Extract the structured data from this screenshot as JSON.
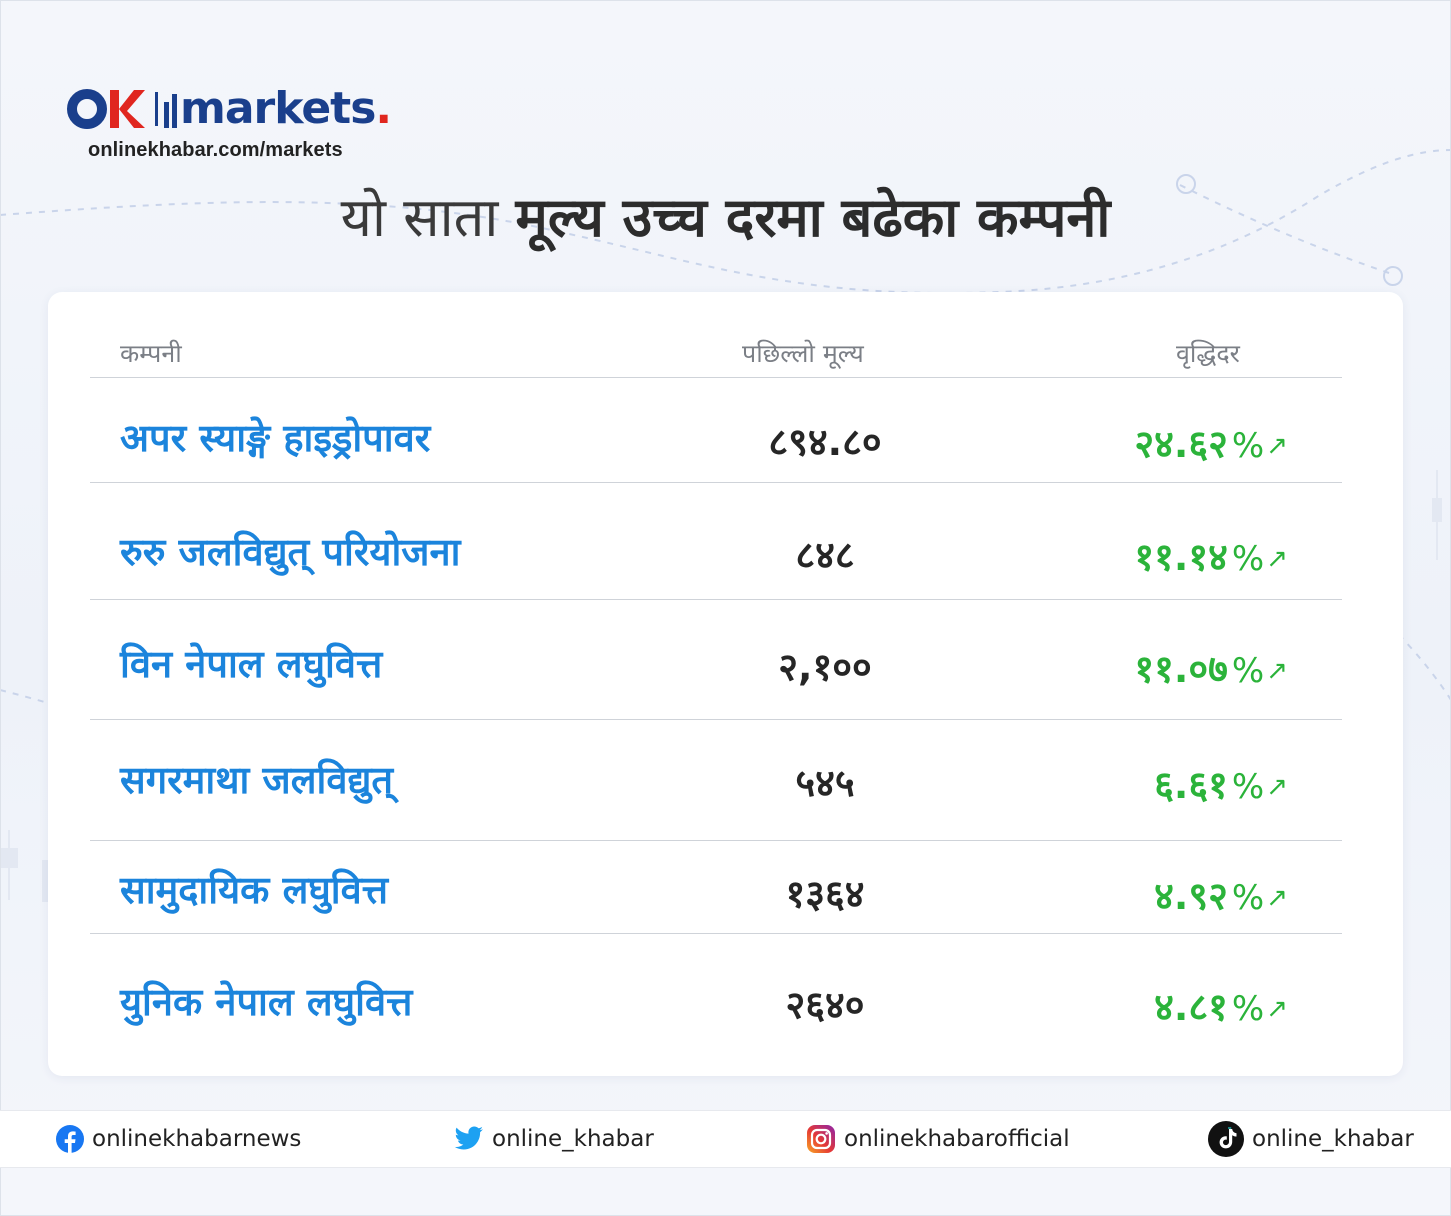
{
  "brand": {
    "wordmark": "markets",
    "wordmark_dot": ".",
    "url": "onlinekhabar.com/markets",
    "colors": {
      "navy": "#1a3f8c",
      "red": "#e0261f"
    }
  },
  "headline": {
    "light": "यो साता ",
    "bold": "मूल्य उच्च दरमा बढेका कम्पनी"
  },
  "table": {
    "headers": {
      "company": "कम्पनी",
      "price": "पछिल्लो मूल्य",
      "change": "वृद्धिदर"
    },
    "rows": [
      {
        "company": "अपर स्याङ्गे हाइड्रोपावर",
        "price": "८९४.८०",
        "change": "२४.६२",
        "unit": "%",
        "trend": "↗"
      },
      {
        "company": "रुरु जलविद्युत् परियोजना",
        "price": "८४८",
        "change": "११.१४",
        "unit": "%",
        "trend": "↗"
      },
      {
        "company": "विन नेपाल लघुवित्त",
        "price": "२,१००",
        "change": "११.०७",
        "unit": "%",
        "trend": "↗"
      },
      {
        "company": "सगरमाथा जलविद्युत्",
        "price": "५४५",
        "change": "६.६१",
        "unit": "%",
        "trend": "↗"
      },
      {
        "company": "सामुदायिक लघुवित्त",
        "price": "१३६४",
        "change": "४.९२",
        "unit": "%",
        "trend": "↗"
      },
      {
        "company": "युनिक नेपाल लघुवित्त",
        "price": "२६४०",
        "change": "४.८१",
        "unit": "%",
        "trend": "↗"
      }
    ],
    "colors": {
      "company": "#1b84dc",
      "change": "#2bb33a",
      "price": "#262626"
    }
  },
  "social": [
    {
      "icon": "facebook-icon",
      "handle": "onlinekhabarnews"
    },
    {
      "icon": "twitter-icon",
      "handle": "online_khabar"
    },
    {
      "icon": "instagram-icon",
      "handle": "onlinekhabarofficial"
    },
    {
      "icon": "tiktok-icon",
      "handle": "online_khabar"
    }
  ]
}
